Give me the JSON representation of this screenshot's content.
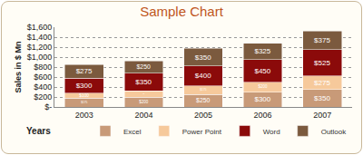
{
  "chart_data": {
    "type": "bar",
    "title": "Sample Chart",
    "stacked": true,
    "data_labels": true,
    "grid": true,
    "legend": "lower right",
    "y_label": "Sales in $ Mn",
    "x_label": "Years",
    "categories": [
      "2003",
      "2004",
      "2005",
      "2006",
      "2007"
    ],
    "series": [
      {
        "name": "Excel",
        "color": "#c89a78",
        "values": [
          175,
          200,
          250,
          300,
          350
        ],
        "value_labels": [
          "$175",
          "$200",
          "$250",
          "$300",
          "$350"
        ]
      },
      {
        "name": "Power Point",
        "color": "#f6c99b",
        "values": [
          100,
          125,
          175,
          200,
          275
        ],
        "value_labels": [
          "$100",
          "$125",
          "$175",
          "$200",
          "$275"
        ]
      },
      {
        "name": "Word",
        "color": "#8b0a0a",
        "values": [
          300,
          350,
          400,
          450,
          525
        ],
        "value_labels": [
          "$300",
          "$350",
          "$400",
          "$450",
          "$525"
        ]
      },
      {
        "name": "Outlook",
        "color": "#7b5a3e",
        "values": [
          275,
          250,
          350,
          325,
          375
        ],
        "value_labels": [
          "$275",
          "$250",
          "$350",
          "$325",
          "$375"
        ]
      }
    ],
    "ylim": [
      0,
      1600
    ],
    "yticks": [
      {
        "value": 0,
        "label": "$-"
      },
      {
        "value": 200,
        "label": "$200"
      },
      {
        "value": 400,
        "label": "$400"
      },
      {
        "value": 600,
        "label": "$600"
      },
      {
        "value": 800,
        "label": "$800"
      },
      {
        "value": 1000,
        "label": "$1,000"
      },
      {
        "value": 1200,
        "label": "$1,200"
      },
      {
        "value": 1400,
        "label": "$1,400"
      },
      {
        "value": 1600,
        "label": "$1,600"
      }
    ]
  }
}
